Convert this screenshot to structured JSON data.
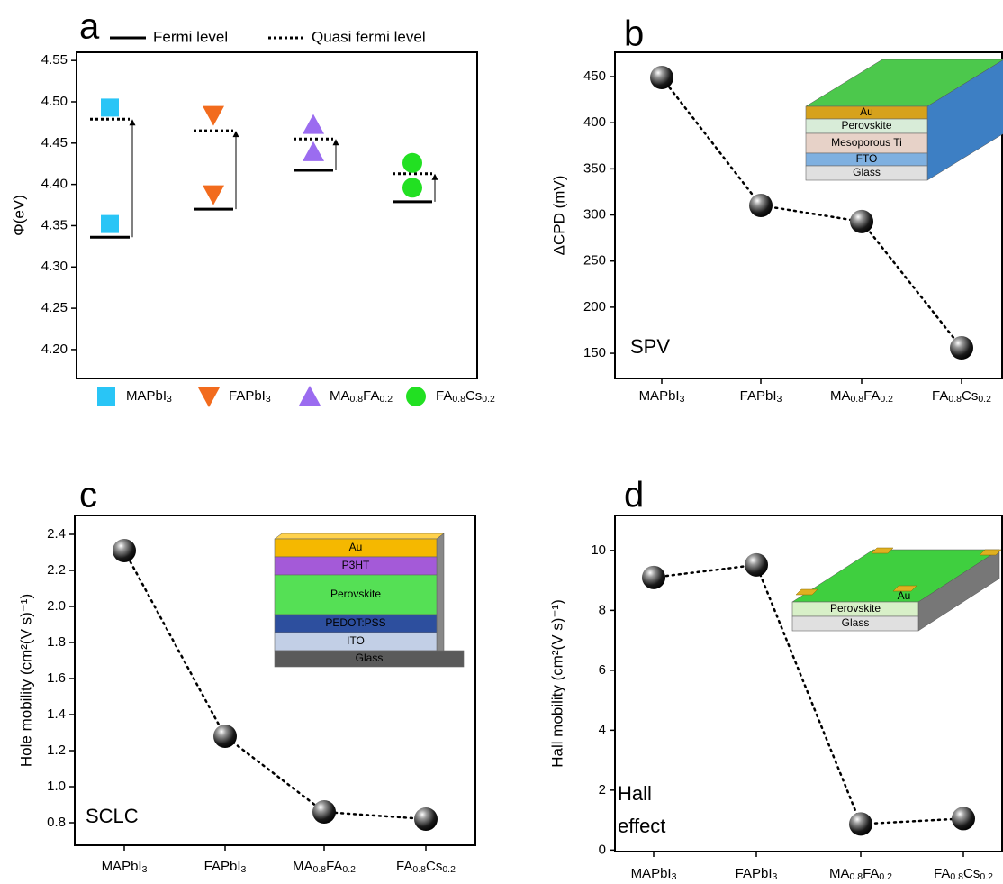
{
  "chart_data": [
    {
      "type": "level",
      "panel": "a",
      "ylabel": "Φ(eV)",
      "ylim": [
        4.165,
        4.56
      ],
      "yticks": [
        {
          "value": 4.2,
          "label": "4.20"
        },
        4.25,
        {
          "value": 4.3,
          "label": "4.30"
        },
        4.35,
        {
          "value": 4.4,
          "label": "4.40"
        },
        4.45,
        {
          "value": 4.5,
          "label": "4.50"
        },
        4.55
      ],
      "categories": [
        "MAPbI3",
        "FAPbI3",
        "MA0.8FA0.2",
        "FA0.8Cs0.2"
      ],
      "series": [
        {
          "name": "Fermi level",
          "color": "#000000",
          "style": "solid",
          "values": [
            4.336,
            4.37,
            4.417,
            4.379
          ]
        },
        {
          "name": "Quasi fermi level",
          "color": "#000000",
          "style": "dotted",
          "values": [
            4.479,
            4.465,
            4.455,
            4.413
          ]
        }
      ],
      "markers": [
        {
          "color": "#29c5f6",
          "shape": "square",
          "values": [
            4.493,
            4.352
          ]
        },
        {
          "color": "#f26b1d",
          "shape": "triangle-down",
          "values": [
            4.484,
            4.388
          ]
        },
        {
          "color": "#9b6cf0",
          "shape": "triangle-up",
          "values": [
            4.472,
            4.439
          ]
        },
        {
          "color": "#22e022",
          "shape": "circle",
          "values": [
            4.426,
            4.396
          ]
        }
      ]
    },
    {
      "type": "line",
      "panel": "b",
      "ylabel": "ΔCPD (mV)",
      "ylim": [
        122.7,
        476.4
      ],
      "yticks": [
        150,
        200,
        250,
        300,
        350,
        400,
        450
      ],
      "categories": [
        "MAPbI3",
        "FAPbI3",
        "MA0.8FA0.2",
        "FA0.8Cs0.2"
      ],
      "values": [
        449,
        310.3,
        292.8,
        155.9
      ],
      "annotation": "SPV",
      "inset_labels": [
        "Au",
        "Perovskite",
        "Mesoporous Ti",
        "FTO",
        "Glass"
      ]
    },
    {
      "type": "line",
      "panel": "c",
      "ylabel": "Hole mobility (cm²(V s)⁻¹)",
      "ylim": [
        0.675,
        2.505
      ],
      "yticks": [
        0.8,
        {
          "value": 1.0,
          "label": "1.0"
        },
        1.2,
        1.4,
        1.6,
        1.8,
        {
          "value": 2.0,
          "label": "2.0"
        },
        2.2,
        2.4
      ],
      "categories": [
        "MAPbI3",
        "FAPbI3",
        "MA0.8FA0.2",
        "FA0.8Cs0.2"
      ],
      "values": [
        2.31,
        1.28,
        0.86,
        0.82
      ],
      "annotation": "SCLC",
      "inset_labels": [
        "Au",
        "P3HT",
        "Perovskite",
        "PEDOT:PSS",
        "ITO",
        "Glass"
      ]
    },
    {
      "type": "line",
      "panel": "d",
      "ylabel": "Hall mobility (cm²(V s)⁻¹)",
      "ylim": [
        -0.05,
        11.17
      ],
      "yticks": [
        0,
        2,
        4,
        6,
        8,
        10
      ],
      "categories": [
        "MAPbI3",
        "FAPbI3",
        "MA0.8FA0.2",
        "FA0.8Cs0.2"
      ],
      "values": [
        9.1,
        9.52,
        0.87,
        1.05
      ],
      "annotation": [
        "Hall",
        "effect"
      ],
      "inset_labels": [
        "Perovskite",
        "Glass",
        "Au"
      ]
    }
  ]
}
